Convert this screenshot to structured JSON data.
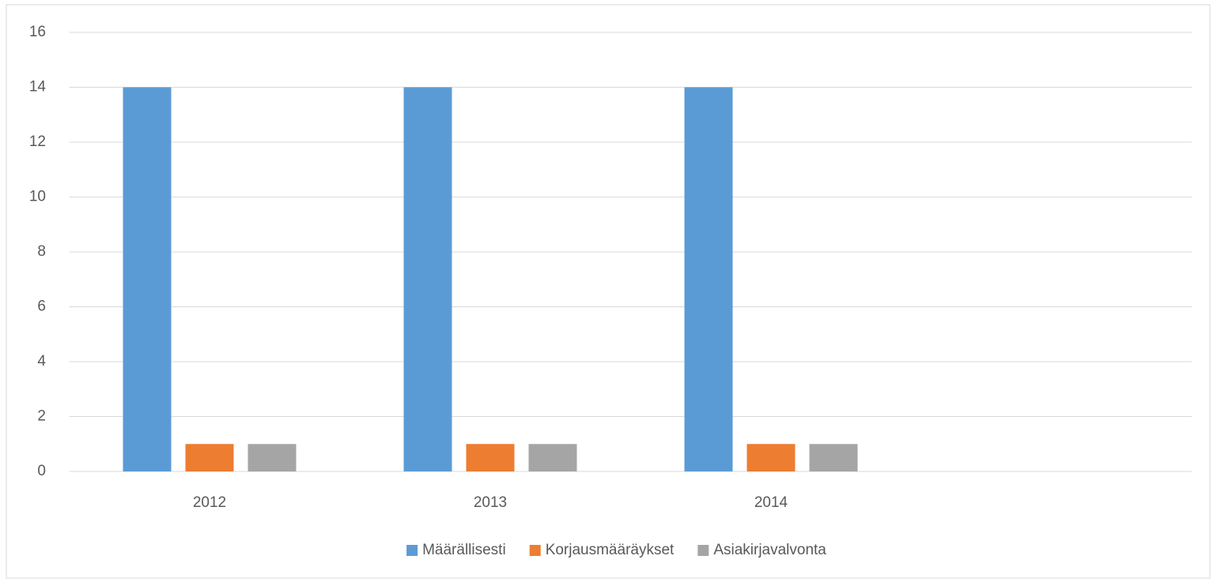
{
  "chart_data": {
    "type": "bar",
    "categories": [
      "2012",
      "2013",
      "2014",
      null
    ],
    "series": [
      {
        "name": "Määrällisesti",
        "color": "#5b9bd5",
        "values": [
          14,
          14,
          14,
          null
        ]
      },
      {
        "name": "Korjausmääräykset",
        "color": "#ed7d31",
        "values": [
          1,
          1,
          1,
          null
        ]
      },
      {
        "name": "Asiakirjavalvonta",
        "color": "#a5a5a5",
        "values": [
          1,
          1,
          1,
          null
        ]
      }
    ],
    "ylim": [
      0,
      16
    ],
    "yticks": [
      0,
      2,
      4,
      6,
      8,
      10,
      12,
      14,
      16
    ],
    "grid": true,
    "legend": "bottom"
  }
}
